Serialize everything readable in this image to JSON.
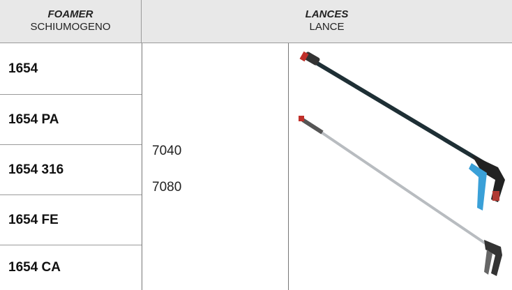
{
  "header": {
    "foamer": {
      "title": "FOAMER",
      "subtitle": "SCHIUMOGENO"
    },
    "lances": {
      "title": "LANCES",
      "subtitle": "LANCE"
    }
  },
  "foamers": [
    "1654",
    "1654 PA",
    "1654 316",
    "1654 FE",
    "1654 CA"
  ],
  "lance_codes": [
    "7040",
    "7080"
  ]
}
